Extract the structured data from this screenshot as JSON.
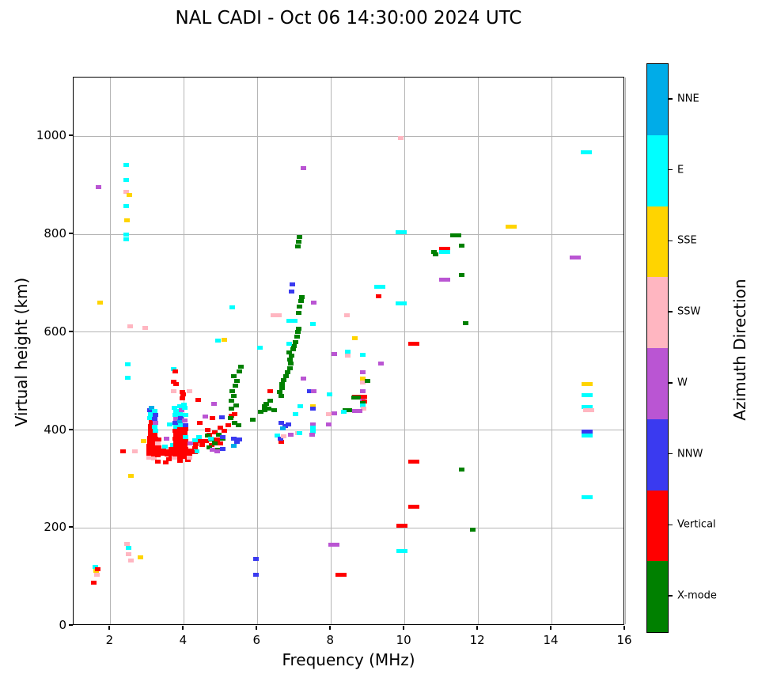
{
  "chart_data": {
    "type": "scatter",
    "title": "NAL CADI - Oct 06 14:30:00 2024 UTC",
    "xlabel": "Frequency (MHz)",
    "ylabel": "Virtual height (km)",
    "xlim": [
      1,
      16
    ],
    "ylim": [
      0,
      1120
    ],
    "xticks": [
      2,
      4,
      6,
      8,
      10,
      12,
      14,
      16
    ],
    "yticks": [
      0,
      200,
      400,
      600,
      800,
      1000
    ],
    "grid": true,
    "legend_position": "right-colorbar",
    "colorbar": {
      "label": "Azimuth Direction",
      "categories": [
        {
          "key": "X",
          "label": "X-mode",
          "color": "#008000"
        },
        {
          "key": "V",
          "label": "Vertical",
          "color": "#ff0000"
        },
        {
          "key": "NNW",
          "label": "NNW",
          "color": "#3a3af0"
        },
        {
          "key": "W",
          "label": "W",
          "color": "#ba55d3"
        },
        {
          "key": "SSW",
          "label": "SSW",
          "color": "#ffb6c1"
        },
        {
          "key": "SSE",
          "label": "SSE",
          "color": "#ffd400"
        },
        {
          "key": "E",
          "label": "E",
          "color": "#00ffff"
        },
        {
          "key": "NNE",
          "label": "NNE",
          "color": "#00ace8"
        }
      ]
    },
    "point_bin": {
      "width_mhz": 0.15,
      "height_km": 8
    },
    "points": [
      [
        1.55,
        88,
        "V"
      ],
      [
        1.6,
        120,
        "E"
      ],
      [
        1.62,
        112,
        "SSE"
      ],
      [
        1.66,
        116,
        "V"
      ],
      [
        1.63,
        104,
        "SSW"
      ],
      [
        1.72,
        660,
        "SSE"
      ],
      [
        1.68,
        896,
        "W"
      ],
      [
        2.43,
        941,
        "E"
      ],
      [
        2.43,
        910,
        "E"
      ],
      [
        2.44,
        886,
        "SSW"
      ],
      [
        2.52,
        880,
        "SSE"
      ],
      [
        2.43,
        858,
        "E"
      ],
      [
        2.46,
        828,
        "SSE"
      ],
      [
        2.43,
        800,
        "E"
      ],
      [
        2.43,
        789,
        "E"
      ],
      [
        2.54,
        612,
        "SSW"
      ],
      [
        2.95,
        609,
        "SSW"
      ],
      [
        2.47,
        534,
        "E"
      ],
      [
        2.47,
        506,
        "E"
      ],
      [
        2.56,
        307,
        "SSE"
      ],
      [
        2.45,
        167,
        "SSW"
      ],
      [
        2.5,
        159,
        "E"
      ],
      [
        2.5,
        146,
        "SSW"
      ],
      [
        2.56,
        134,
        "SSW"
      ],
      [
        2.82,
        139,
        "SSE"
      ],
      [
        5.95,
        137,
        "NNW"
      ],
      [
        5.97,
        104,
        "NNW"
      ],
      [
        2.35,
        356,
        "V"
      ],
      [
        2.67,
        357,
        "SSW"
      ],
      [
        2.9,
        377,
        "SSE"
      ],
      [
        3.05,
        344,
        "SSW"
      ],
      [
        3.05,
        352,
        "V"
      ],
      [
        3.05,
        360,
        "V"
      ],
      [
        3.05,
        368,
        "V"
      ],
      [
        3.08,
        376,
        "V"
      ],
      [
        3.08,
        384,
        "V"
      ],
      [
        3.1,
        392,
        "V"
      ],
      [
        3.1,
        400,
        "V"
      ],
      [
        3.1,
        408,
        "V"
      ],
      [
        3.12,
        416,
        "V"
      ],
      [
        3.08,
        424,
        "E"
      ],
      [
        3.1,
        432,
        "E"
      ],
      [
        3.08,
        440,
        "NNW"
      ],
      [
        3.12,
        446,
        "NNE"
      ],
      [
        3.18,
        342,
        "SSW"
      ],
      [
        3.18,
        350,
        "V"
      ],
      [
        3.18,
        358,
        "V"
      ],
      [
        3.2,
        366,
        "V"
      ],
      [
        3.2,
        374,
        "V"
      ],
      [
        3.22,
        382,
        "V"
      ],
      [
        3.2,
        390,
        "V"
      ],
      [
        3.22,
        398,
        "E"
      ],
      [
        3.2,
        406,
        "E"
      ],
      [
        3.22,
        414,
        "W"
      ],
      [
        3.2,
        422,
        "NNW"
      ],
      [
        3.22,
        430,
        "NNW"
      ],
      [
        3.2,
        438,
        "E"
      ],
      [
        3.3,
        336,
        "V"
      ],
      [
        3.3,
        348,
        "V"
      ],
      [
        3.3,
        356,
        "V"
      ],
      [
        3.32,
        364,
        "V"
      ],
      [
        3.3,
        372,
        "SSW"
      ],
      [
        3.32,
        380,
        "V"
      ],
      [
        3.42,
        351,
        "V"
      ],
      [
        3.45,
        358,
        "V"
      ],
      [
        3.48,
        366,
        "E"
      ],
      [
        3.5,
        334,
        "V"
      ],
      [
        3.55,
        350,
        "V"
      ],
      [
        3.58,
        357,
        "V"
      ],
      [
        3.53,
        383,
        "W"
      ],
      [
        3.6,
        340,
        "V"
      ],
      [
        3.62,
        412,
        "E"
      ],
      [
        3.65,
        347,
        "V"
      ],
      [
        3.68,
        355,
        "V"
      ],
      [
        3.65,
        362,
        "V"
      ],
      [
        3.7,
        370,
        "E"
      ],
      [
        3.73,
        525,
        "E"
      ],
      [
        3.77,
        520,
        "V"
      ],
      [
        3.72,
        498,
        "V"
      ],
      [
        3.78,
        494,
        "V"
      ],
      [
        3.73,
        479,
        "SSW"
      ],
      [
        3.75,
        343,
        "SSW"
      ],
      [
        3.77,
        350,
        "V"
      ],
      [
        3.77,
        358,
        "V"
      ],
      [
        3.79,
        366,
        "V"
      ],
      [
        3.79,
        374,
        "V"
      ],
      [
        3.77,
        382,
        "V"
      ],
      [
        3.79,
        390,
        "V"
      ],
      [
        3.77,
        398,
        "V"
      ],
      [
        3.79,
        406,
        "E"
      ],
      [
        3.77,
        414,
        "NNW"
      ],
      [
        3.79,
        422,
        "W"
      ],
      [
        3.77,
        430,
        "E"
      ],
      [
        3.79,
        438,
        "E"
      ],
      [
        3.75,
        446,
        "E"
      ],
      [
        3.9,
        337,
        "V"
      ],
      [
        3.9,
        345,
        "V"
      ],
      [
        3.9,
        353,
        "V"
      ],
      [
        3.92,
        361,
        "V"
      ],
      [
        3.9,
        369,
        "V"
      ],
      [
        3.92,
        377,
        "V"
      ],
      [
        3.9,
        385,
        "V"
      ],
      [
        3.92,
        393,
        "V"
      ],
      [
        3.9,
        401,
        "V"
      ],
      [
        3.92,
        409,
        "E"
      ],
      [
        3.9,
        417,
        "NNE"
      ],
      [
        3.92,
        425,
        "NNW"
      ],
      [
        3.9,
        433,
        "E"
      ],
      [
        3.93,
        441,
        "W"
      ],
      [
        3.9,
        449,
        "E"
      ],
      [
        4.03,
        345,
        "V"
      ],
      [
        4.03,
        353,
        "V"
      ],
      [
        4.05,
        361,
        "V"
      ],
      [
        4.03,
        369,
        "V"
      ],
      [
        4.05,
        377,
        "V"
      ],
      [
        4.05,
        385,
        "E"
      ],
      [
        4.03,
        393,
        "V"
      ],
      [
        4.05,
        401,
        "V"
      ],
      [
        4.05,
        410,
        "NNW"
      ],
      [
        4.03,
        420,
        "W"
      ],
      [
        4.05,
        430,
        "E"
      ],
      [
        4.03,
        445,
        "E"
      ],
      [
        4.0,
        452,
        "E"
      ],
      [
        3.96,
        464,
        "V"
      ],
      [
        3.98,
        472,
        "V"
      ],
      [
        3.96,
        477,
        "V"
      ],
      [
        4.1,
        338,
        "V"
      ],
      [
        4.16,
        350,
        "V"
      ],
      [
        4.18,
        358,
        "V"
      ],
      [
        4.16,
        343,
        "SSW"
      ],
      [
        4.16,
        479,
        "SSW"
      ],
      [
        4.18,
        372,
        "W"
      ],
      [
        4.3,
        355,
        "V"
      ],
      [
        4.3,
        363,
        "V"
      ],
      [
        4.32,
        371,
        "V"
      ],
      [
        4.3,
        379,
        "E"
      ],
      [
        4.35,
        356,
        "E"
      ],
      [
        4.4,
        461,
        "V"
      ],
      [
        4.45,
        378,
        "V"
      ],
      [
        4.5,
        370,
        "V"
      ],
      [
        3.94,
        350,
        "V"
      ],
      [
        4.22,
        354,
        "V"
      ],
      [
        4.42,
        385,
        "E"
      ],
      [
        4.44,
        415,
        "V"
      ],
      [
        4.6,
        378,
        "V"
      ],
      [
        4.65,
        400,
        "V"
      ],
      [
        4.7,
        390,
        "V"
      ],
      [
        4.75,
        370,
        "V"
      ],
      [
        4.85,
        395,
        "V"
      ],
      [
        4.9,
        380,
        "V"
      ],
      [
        5.0,
        405,
        "V"
      ],
      [
        5.0,
        372,
        "V"
      ],
      [
        5.1,
        398,
        "V"
      ],
      [
        5.2,
        410,
        "V"
      ],
      [
        4.65,
        388,
        "X"
      ],
      [
        4.75,
        380,
        "X"
      ],
      [
        4.85,
        372,
        "X"
      ],
      [
        4.95,
        390,
        "X"
      ],
      [
        5.05,
        382,
        "X"
      ],
      [
        4.7,
        365,
        "X"
      ],
      [
        4.9,
        360,
        "X"
      ],
      [
        5.05,
        385,
        "NNW"
      ],
      [
        5.35,
        382,
        "NNW"
      ],
      [
        5.45,
        375,
        "NNW"
      ],
      [
        5.35,
        368,
        "NNE"
      ],
      [
        5.5,
        380,
        "NNW"
      ],
      [
        5.05,
        361,
        "NNW"
      ],
      [
        5.37,
        415,
        "X"
      ],
      [
        5.48,
        409,
        "X"
      ],
      [
        5.3,
        429,
        "V"
      ],
      [
        4.73,
        383,
        "E"
      ],
      [
        4.77,
        359,
        "W"
      ],
      [
        4.9,
        357,
        "W"
      ],
      [
        4.59,
        427,
        "W"
      ],
      [
        4.77,
        424,
        "V"
      ],
      [
        4.83,
        453,
        "W"
      ],
      [
        5.03,
        426,
        "NNW"
      ],
      [
        5.28,
        424,
        "X"
      ],
      [
        5.37,
        432,
        "V"
      ],
      [
        4.93,
        582,
        "E"
      ],
      [
        5.11,
        584,
        "SSE"
      ],
      [
        5.32,
        650,
        "E"
      ],
      [
        5.3,
        443,
        "X"
      ],
      [
        5.42,
        450,
        "X"
      ],
      [
        5.3,
        460,
        "X"
      ],
      [
        5.35,
        470,
        "X"
      ],
      [
        5.32,
        480,
        "X"
      ],
      [
        5.4,
        490,
        "X"
      ],
      [
        5.45,
        500,
        "X"
      ],
      [
        5.35,
        510,
        "X"
      ],
      [
        5.5,
        520,
        "X"
      ],
      [
        5.55,
        530,
        "X"
      ],
      [
        5.88,
        421,
        "X"
      ],
      [
        6.1,
        437,
        "X"
      ],
      [
        6.2,
        440,
        "X"
      ],
      [
        6.3,
        444,
        "X"
      ],
      [
        6.45,
        440,
        "X"
      ],
      [
        6.2,
        448,
        "X"
      ],
      [
        6.25,
        453,
        "X"
      ],
      [
        6.35,
        460,
        "X"
      ],
      [
        6.64,
        470,
        "X"
      ],
      [
        6.6,
        477,
        "X"
      ],
      [
        6.66,
        485,
        "X"
      ],
      [
        6.68,
        494,
        "X"
      ],
      [
        6.72,
        502,
        "X"
      ],
      [
        6.78,
        510,
        "X"
      ],
      [
        6.82,
        518,
        "X"
      ],
      [
        6.88,
        526,
        "X"
      ],
      [
        6.9,
        535,
        "X"
      ],
      [
        6.88,
        544,
        "X"
      ],
      [
        6.92,
        552,
        "X"
      ],
      [
        6.87,
        558,
        "X"
      ],
      [
        6.97,
        565,
        "X"
      ],
      [
        7.0,
        572,
        "X"
      ],
      [
        7.03,
        580,
        "X"
      ],
      [
        7.08,
        590,
        "X"
      ],
      [
        7.1,
        600,
        "X"
      ],
      [
        7.13,
        607,
        "X"
      ],
      [
        7.12,
        640,
        "X"
      ],
      [
        7.15,
        652,
        "X"
      ],
      [
        7.18,
        664,
        "X"
      ],
      [
        7.2,
        672,
        "X"
      ],
      [
        7.1,
        775,
        "X"
      ],
      [
        7.12,
        785,
        "X"
      ],
      [
        7.14,
        794,
        "X"
      ],
      [
        7.25,
        935,
        "W"
      ],
      [
        6.95,
        697,
        "NNW"
      ],
      [
        6.93,
        683,
        "NNW"
      ],
      [
        7.54,
        660,
        "W"
      ],
      [
        6.95,
        623,
        "E",
        2
      ],
      [
        7.5,
        616,
        "E"
      ],
      [
        6.5,
        634,
        "SSW",
        2
      ],
      [
        6.87,
        576,
        "E"
      ],
      [
        6.06,
        568,
        "E"
      ],
      [
        6.34,
        480,
        "V"
      ],
      [
        6.64,
        375,
        "V"
      ],
      [
        6.65,
        415,
        "NNW"
      ],
      [
        6.75,
        408,
        "NNW"
      ],
      [
        6.85,
        412,
        "NNW"
      ],
      [
        6.7,
        404,
        "NNE"
      ],
      [
        7.26,
        505,
        "W"
      ],
      [
        7.42,
        480,
        "NNW"
      ],
      [
        7.54,
        480,
        "W"
      ],
      [
        7.96,
        472,
        "E"
      ],
      [
        7.5,
        449,
        "SSE"
      ],
      [
        7.52,
        443,
        "NNW"
      ],
      [
        7.17,
        448,
        "E"
      ],
      [
        7.03,
        432,
        "E"
      ],
      [
        7.5,
        412,
        "W"
      ],
      [
        7.95,
        412,
        "W"
      ],
      [
        7.5,
        405,
        "E"
      ],
      [
        7.5,
        397,
        "E"
      ],
      [
        7.48,
        390,
        "W"
      ],
      [
        7.1,
        393,
        "SSW"
      ],
      [
        7.95,
        432,
        "SSW"
      ],
      [
        6.55,
        388,
        "E"
      ],
      [
        6.62,
        383,
        "NNW"
      ],
      [
        6.72,
        387,
        "SSW"
      ],
      [
        6.9,
        391,
        "W"
      ],
      [
        7.15,
        393,
        "E"
      ],
      [
        8.43,
        634,
        "SSW"
      ],
      [
        8.64,
        587,
        "SSE"
      ],
      [
        8.1,
        555,
        "W"
      ],
      [
        8.45,
        560,
        "E"
      ],
      [
        8.45,
        552,
        "SSW"
      ],
      [
        8.86,
        553,
        "E"
      ],
      [
        9.36,
        536,
        "W"
      ],
      [
        8.86,
        518,
        "W"
      ],
      [
        8.86,
        505,
        "SSE"
      ],
      [
        8.86,
        497,
        "SSW"
      ],
      [
        9.0,
        500,
        "X"
      ],
      [
        8.86,
        479,
        "W"
      ],
      [
        8.65,
        468,
        "V"
      ],
      [
        8.78,
        468,
        "V"
      ],
      [
        8.9,
        468,
        "V"
      ],
      [
        8.62,
        466,
        "X"
      ],
      [
        8.74,
        466,
        "X"
      ],
      [
        8.86,
        460,
        "W"
      ],
      [
        8.9,
        458,
        "V"
      ],
      [
        8.86,
        455,
        "X"
      ],
      [
        8.86,
        450,
        "E"
      ],
      [
        8.88,
        444,
        "SSW"
      ],
      [
        8.4,
        440,
        "X"
      ],
      [
        8.5,
        440,
        "X"
      ],
      [
        8.36,
        437,
        "E"
      ],
      [
        8.65,
        438,
        "W"
      ],
      [
        8.78,
        438,
        "W"
      ],
      [
        8.1,
        434,
        "W"
      ],
      [
        9.3,
        673,
        "V"
      ],
      [
        9.32,
        693,
        "E",
        2
      ],
      [
        9.9,
        658,
        "E",
        2
      ],
      [
        9.9,
        997,
        "SSW"
      ],
      [
        9.9,
        804,
        "E",
        2
      ],
      [
        10.26,
        576,
        "V",
        2
      ],
      [
        10.26,
        335,
        "V",
        2
      ],
      [
        10.26,
        244,
        "V",
        2
      ],
      [
        9.94,
        204,
        "V",
        2
      ],
      [
        9.94,
        152,
        "E",
        2
      ],
      [
        8.09,
        165,
        "W",
        2
      ],
      [
        8.27,
        105,
        "V",
        2
      ],
      [
        11.4,
        798,
        "X",
        2
      ],
      [
        11.55,
        777,
        "X"
      ],
      [
        11.1,
        770,
        "V",
        2
      ],
      [
        11.1,
        764,
        "E",
        2
      ],
      [
        10.8,
        764,
        "X"
      ],
      [
        10.85,
        758,
        "X"
      ],
      [
        11.55,
        717,
        "X"
      ],
      [
        11.1,
        707,
        "W",
        2
      ],
      [
        11.67,
        618,
        "X"
      ],
      [
        11.55,
        319,
        "X"
      ],
      [
        11.85,
        197,
        "X"
      ],
      [
        12.9,
        815,
        "SSE",
        2
      ],
      [
        14.65,
        752,
        "W",
        2
      ],
      [
        14.95,
        968,
        "E",
        2
      ],
      [
        14.97,
        494,
        "SSE",
        2
      ],
      [
        14.97,
        471,
        "E",
        2
      ],
      [
        14.97,
        447,
        "E",
        2
      ],
      [
        15.0,
        441,
        "SSW",
        2
      ],
      [
        14.97,
        396,
        "NNW",
        2
      ],
      [
        14.97,
        389,
        "E",
        2
      ],
      [
        14.97,
        263,
        "E",
        2
      ]
    ]
  }
}
